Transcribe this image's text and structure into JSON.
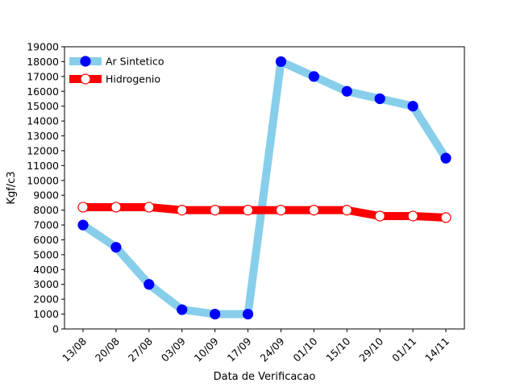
{
  "chart_data": {
    "type": "line",
    "title": "",
    "xlabel": "Data de Verificacao",
    "ylabel": "Kgf/c3",
    "categories": [
      "13/08",
      "20/08",
      "27/08",
      "03/09",
      "10/09",
      "17/09",
      "24/09",
      "01/10",
      "15/10",
      "29/10",
      "01/11",
      "14/11"
    ],
    "ylim": [
      0,
      19000
    ],
    "yticks": [
      0,
      1000,
      2000,
      3000,
      4000,
      5000,
      6000,
      7000,
      8000,
      9000,
      10000,
      11000,
      12000,
      13000,
      14000,
      15000,
      16000,
      17000,
      18000,
      19000
    ],
    "grid": false,
    "legend_position": "top-left",
    "series": [
      {
        "name": "Ar Sintetico",
        "line_color": "#87ceeb",
        "marker_face": "#0000ff",
        "marker_edge": "#0000ff",
        "values": [
          7000,
          5500,
          3000,
          1300,
          1000,
          1000,
          18000,
          17000,
          16000,
          15500,
          15000,
          11500
        ]
      },
      {
        "name": "Hidrogenio",
        "line_color": "#ff0000",
        "marker_face": "#ffffff",
        "marker_edge": "#ff0000",
        "values": [
          8200,
          8200,
          8200,
          8000,
          8000,
          8000,
          8000,
          8000,
          8000,
          7600,
          7600,
          7500
        ]
      }
    ]
  }
}
